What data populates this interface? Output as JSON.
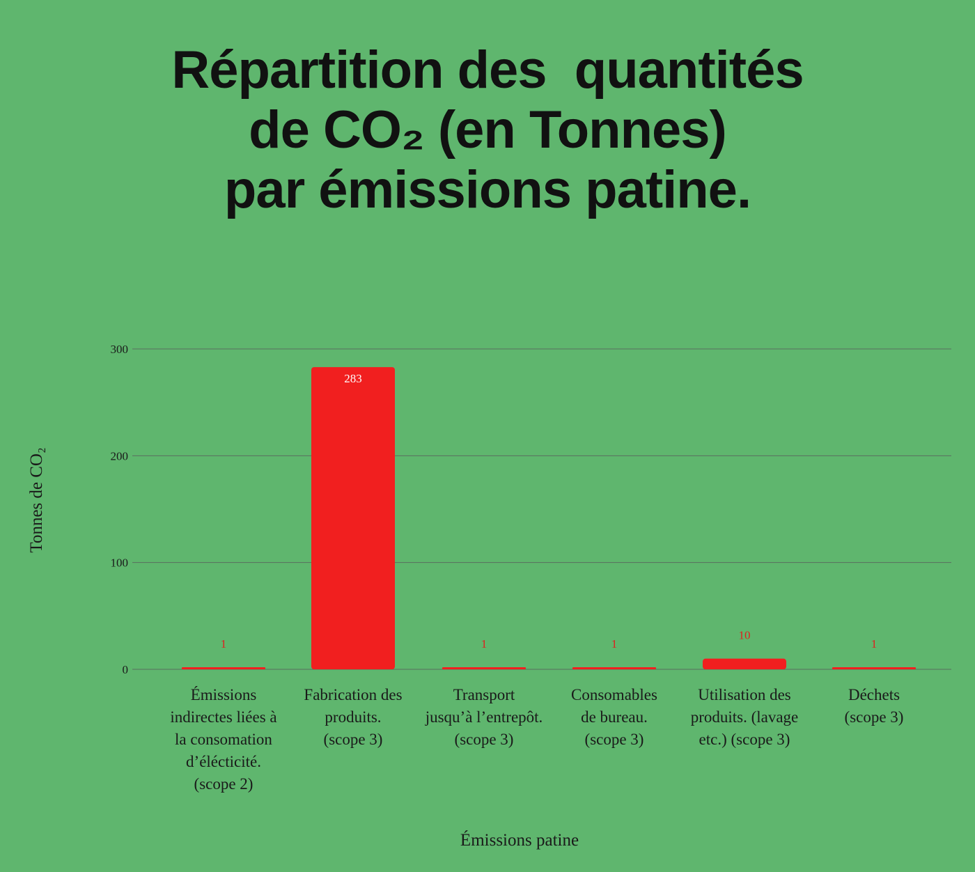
{
  "title": {
    "line1": "Répartition des  quantités",
    "line2": "de CO₂ (en Tonnes)",
    "line3": "par émissions patine."
  },
  "colors": {
    "background": "#5fb66e",
    "bar": "#f11f1f",
    "bar_label_inside": "#ffffff",
    "bar_label_outside": "#e02020",
    "grid": "#5a6e5e",
    "text": "#111111"
  },
  "chart_data": {
    "type": "bar",
    "categories": [
      [
        "Émissions",
        "indirectes liées à",
        "la consomation",
        "d’élécticité.",
        "(scope 2)"
      ],
      [
        "Fabrication des",
        "produits.",
        "(scope 3)"
      ],
      [
        "Transport",
        "jusqu’à l’entrepôt.",
        "(scope 3)"
      ],
      [
        "Consomables",
        "de bureau.",
        "(scope 3)"
      ],
      [
        "Utilisation des",
        "produits. (lavage",
        "etc.) (scope 3)"
      ],
      [
        "Déchets",
        "(scope 3)"
      ]
    ],
    "values": [
      1,
      283,
      1,
      1,
      10,
      1
    ],
    "xlabel": "Émissions patine",
    "ylabel": "Tonnes de CO₂",
    "ylim": [
      0,
      300
    ],
    "yticks": [
      0,
      100,
      200,
      300
    ],
    "grid": true,
    "legend": "none"
  }
}
